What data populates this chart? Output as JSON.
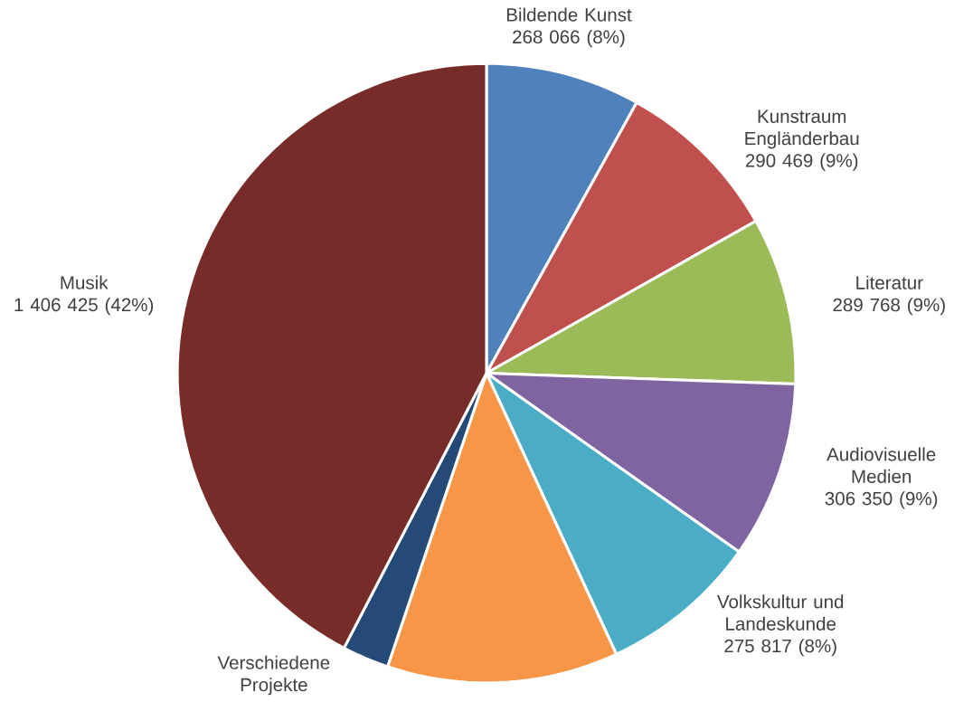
{
  "chart_data": {
    "type": "pie",
    "categories": [
      "Bildende Kunst",
      "Kunstraum Engländerbau",
      "Literatur",
      "Audiovisuelle Medien",
      "Volkskultur und Landeskunde",
      null,
      "Verschiedene Projekte",
      "Musik"
    ],
    "values": [
      268066,
      290469,
      289768,
      306350,
      275817,
      401000,
      81000,
      1406425
    ],
    "value_labels": [
      "268 066 (8%)",
      "290 469 (9%)",
      "289 768 (9%)",
      "306 350 (9%)",
      "275 817 (8%)",
      null,
      null,
      "1 406 425 (42%)"
    ],
    "colors": [
      "#4f81bd",
      "#c0504d",
      "#9bbb59",
      "#8064a2",
      "#4bacc6",
      "#f79646",
      "#254a78",
      "#772c2a"
    ]
  }
}
